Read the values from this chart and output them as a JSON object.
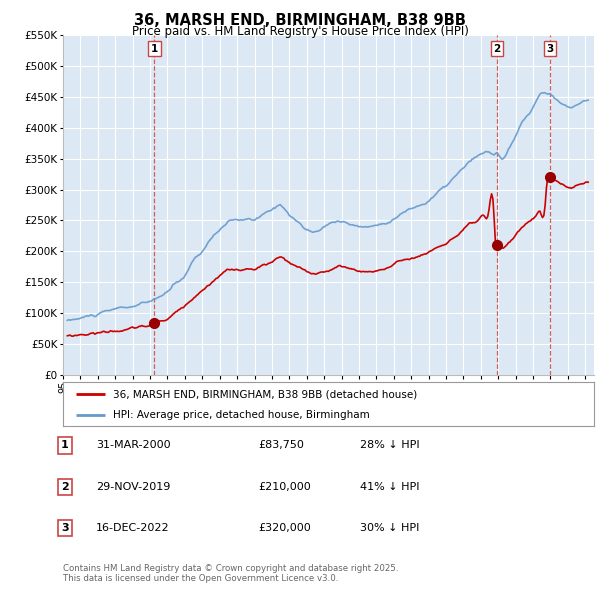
{
  "title": "36, MARSH END, BIRMINGHAM, B38 9BB",
  "subtitle": "Price paid vs. HM Land Registry's House Price Index (HPI)",
  "background_color": "#ffffff",
  "plot_bg_color": "#dce9f5",
  "grid_color": "#ffffff",
  "ylim": [
    0,
    550000
  ],
  "yticks": [
    0,
    50000,
    100000,
    150000,
    200000,
    250000,
    300000,
    350000,
    400000,
    450000,
    500000,
    550000
  ],
  "xlim_start": 1995.3,
  "xlim_end": 2025.5,
  "hpi_color": "#6699cc",
  "price_color": "#cc0000",
  "sale_marker_color": "#990000",
  "dashed_line_color": "#cc4444",
  "legend_label_price": "36, MARSH END, BIRMINGHAM, B38 9BB (detached house)",
  "legend_label_hpi": "HPI: Average price, detached house, Birmingham",
  "sales": [
    {
      "num": 1,
      "date_str": "31-MAR-2000",
      "year": 2000.25,
      "price": 83750,
      "pct": "28%",
      "label": "1"
    },
    {
      "num": 2,
      "date_str": "29-NOV-2019",
      "year": 2019.92,
      "price": 210000,
      "pct": "41%",
      "label": "2"
    },
    {
      "num": 3,
      "date_str": "16-DEC-2022",
      "year": 2022.96,
      "price": 320000,
      "pct": "30%",
      "label": "3"
    }
  ],
  "footnote": "Contains HM Land Registry data © Crown copyright and database right 2025.\nThis data is licensed under the Open Government Licence v3.0.",
  "table_rows": [
    {
      "num": "1",
      "date": "31-MAR-2000",
      "price": "£83,750",
      "pct": "28% ↓ HPI"
    },
    {
      "num": "2",
      "date": "29-NOV-2019",
      "price": "£210,000",
      "pct": "41% ↓ HPI"
    },
    {
      "num": "3",
      "date": "16-DEC-2022",
      "price": "£320,000",
      "pct": "30% ↓ HPI"
    }
  ]
}
